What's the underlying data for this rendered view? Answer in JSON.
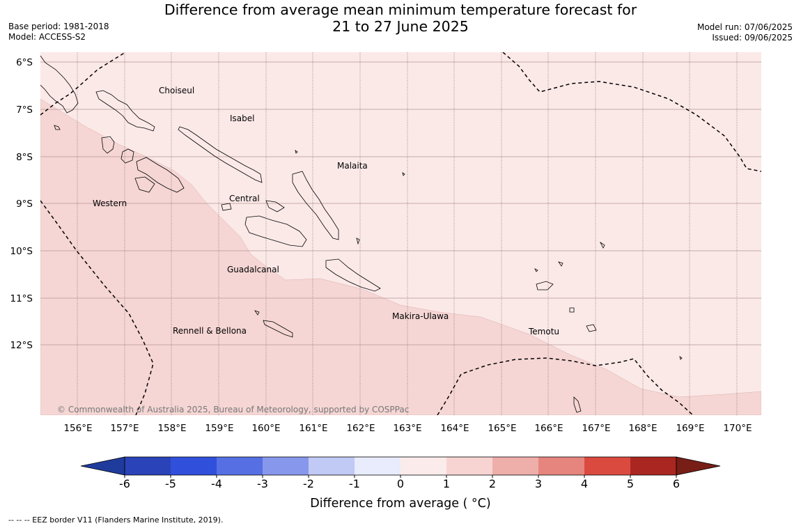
{
  "title_line1": "Difference from average mean minimum temperature forecast for",
  "title_line2": "21 to 27 June 2025",
  "meta_left": {
    "base_period": "Base period: 1981-2018",
    "model": "Model: ACCESS-S2"
  },
  "meta_right": {
    "model_run": "Model run: 07/06/2025",
    "issued": "Issued: 09/06/2025"
  },
  "latitude_labels": [
    "6°S",
    "7°S",
    "8°S",
    "9°S",
    "10°S",
    "11°S",
    "12°S"
  ],
  "longitude_labels": [
    "156°E",
    "157°E",
    "158°E",
    "159°E",
    "160°E",
    "161°E",
    "162°E",
    "163°E",
    "164°E",
    "165°E",
    "166°E",
    "167°E",
    "168°E",
    "169°E",
    "170°E"
  ],
  "places": {
    "choiseul": "Choiseul",
    "isabel": "Isabel",
    "malaita": "Malaita",
    "western": "Western",
    "central": "Central",
    "guadalcanal": "Guadalcanal",
    "makira": "Makira-Ulawa",
    "rennell": "Rennell & Bellona",
    "temotu": "Temotu"
  },
  "copyright": "© Commonwealth of Australia 2025, Bureau of Meteorology, supported by COSPPac",
  "colorbar": {
    "label": "Difference from average ( °C)",
    "ticks": [
      "-6",
      "-5",
      "-4",
      "-3",
      "-2",
      "-1",
      "0",
      "1",
      "2",
      "3",
      "4",
      "5",
      "6"
    ],
    "colors": [
      "#1f3b9c",
      "#2a43b8",
      "#3050dc",
      "#5670e3",
      "#8798ec",
      "#c1c9f5",
      "#e8ecfc",
      "#fcebeb",
      "#f7d4d2",
      "#eeaeaa",
      "#e5857e",
      "#da4a3f",
      "#aa2620",
      "#771e16"
    ],
    "map_fill_colors": {
      "band_0_1": "#fbe9e8",
      "band_1_2": "#f5d6d4"
    }
  },
  "footer": "--  --  -- EEZ border V11 (Flanders Marine Institute, 2019)."
}
